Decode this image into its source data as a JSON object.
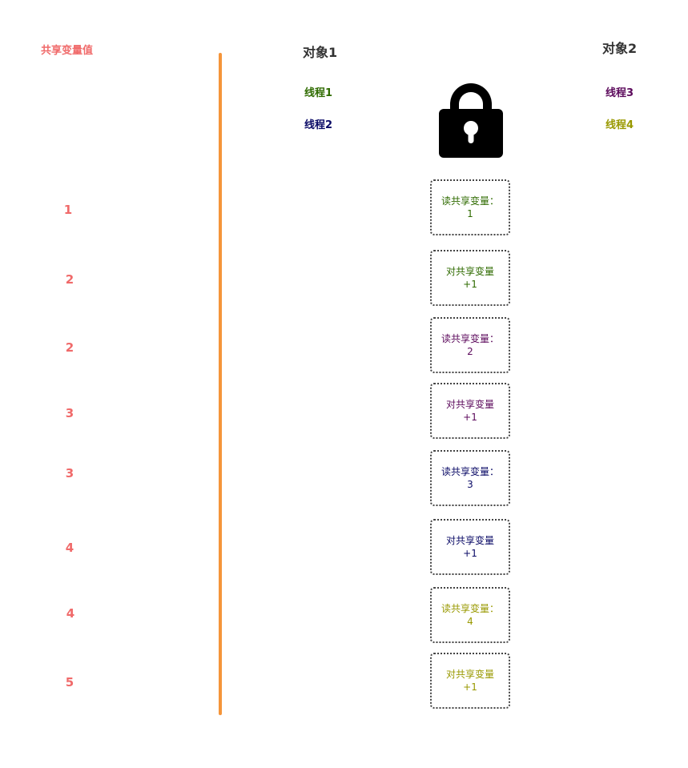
{
  "shared_values_title": "共享变量值",
  "shared_values": [
    "1",
    "2",
    "2",
    "3",
    "3",
    "4",
    "4",
    "5"
  ],
  "objects": [
    {
      "label": "对象1",
      "threads": [
        {
          "label": "线程1",
          "color": "#2f6b00"
        },
        {
          "label": "线程2",
          "color": "#0a0a66"
        }
      ]
    },
    {
      "label": "对象2",
      "threads": [
        {
          "label": "线程3",
          "color": "#5c0a5c"
        },
        {
          "label": "线程4",
          "color": "#999900"
        }
      ]
    }
  ],
  "lock_icon": "lock-icon",
  "steps": [
    {
      "line1": "读共享变量：",
      "line2": "1",
      "color": "#2f6b00"
    },
    {
      "line1": "对共享变量",
      "line2": "+1",
      "color": "#2f6b00"
    },
    {
      "line1": "读共享变量：",
      "line2": "2",
      "color": "#5c0a5c"
    },
    {
      "line1": "对共享变量",
      "line2": "+1",
      "color": "#5c0a5c"
    },
    {
      "line1": "读共享变量：",
      "line2": "3",
      "color": "#0a0a66"
    },
    {
      "line1": "对共享变量",
      "line2": "+1",
      "color": "#0a0a66"
    },
    {
      "line1": "读共享变量：",
      "line2": "4",
      "color": "#999900"
    },
    {
      "line1": "对共享变量",
      "line2": "+1",
      "color": "#999900"
    }
  ],
  "colors": {
    "value_text": "#f06a6a",
    "divider": "#f5953a"
  }
}
